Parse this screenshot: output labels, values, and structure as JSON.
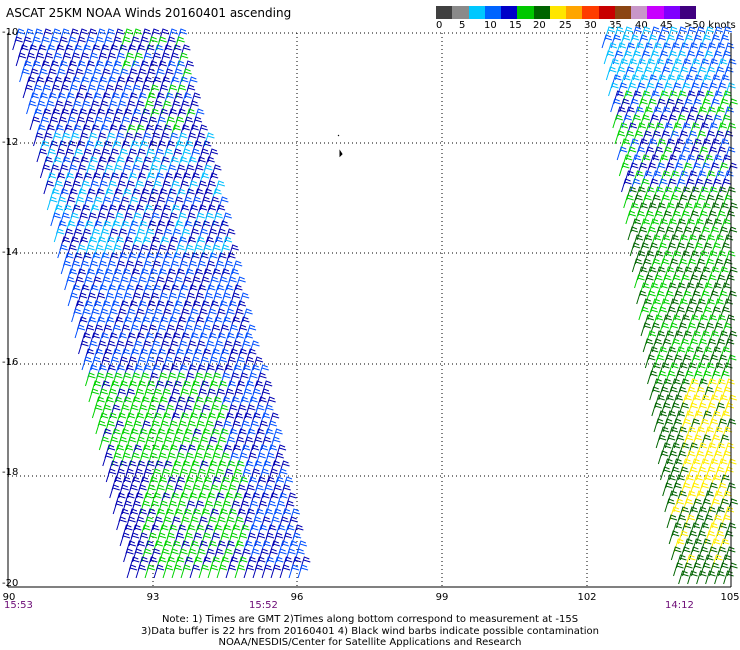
{
  "title": "ASCAT 25KM NOAA Winds 20160401 ascending",
  "legend": {
    "colors": [
      "#404040",
      "#8a8a8a",
      "#00c8ff",
      "#0064ff",
      "#0000c8",
      "#00c800",
      "#006400",
      "#ffe600",
      "#ffa500",
      "#ff3c00",
      "#c80000",
      "#8b4513",
      "#c896c8",
      "#c800ff",
      "#8000ff",
      "#400080"
    ],
    "labels": [
      "0",
      "5",
      "10",
      "15",
      "20",
      "25",
      "30",
      "35",
      "40",
      "45",
      ">50 knots"
    ]
  },
  "lat_labels": [
    "-10",
    "-12",
    "-14",
    "-16",
    "-18",
    "-20"
  ],
  "lon_labels": [
    "90",
    "93",
    "96",
    "99",
    "102",
    "105"
  ],
  "time_labels": [
    "15:53",
    "15:52",
    "14:12"
  ],
  "notes": [
    "Note: 1) Times are GMT 2)Times along bottom correspond to measurement at -15S",
    "3)Data buffer is 22 hrs from 20160401 4) Black wind barbs indicate possible contamination",
    "NOAA/NESDIS/Center for Satellite Applications and Research"
  ],
  "swath_colors": {
    "cyan": "#00bfff",
    "blue": "#0050ff",
    "navy": "#0000b4",
    "green": "#00d200",
    "darkgreen": "#006400",
    "yellow": "#ffee00"
  }
}
